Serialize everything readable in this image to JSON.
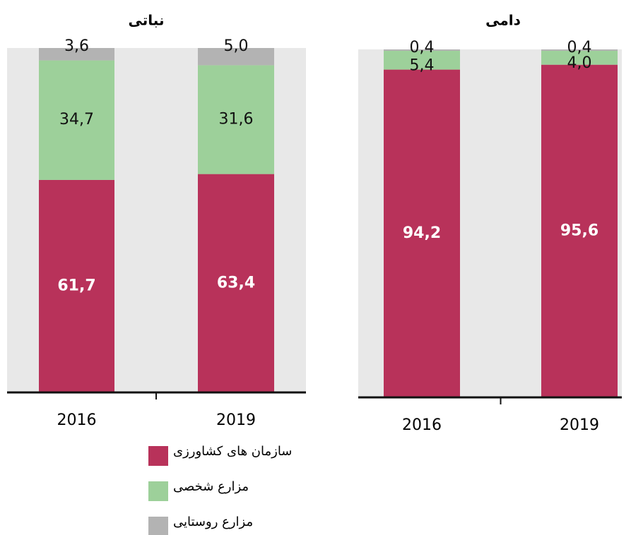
{
  "chart_data": [
    {
      "type": "stacked_bar",
      "title": "نباتی",
      "categories": [
        "2016",
        "2019"
      ],
      "ylim": [
        0,
        100
      ],
      "series": [
        {
          "name": "سازمان های کشاورزی",
          "color": "#b8325a",
          "values": [
            61.7,
            63.4
          ],
          "value_labels": [
            "61,7",
            "63,4"
          ]
        },
        {
          "name": "مزارع شخصی",
          "color": "#9dd09a",
          "values": [
            34.7,
            31.6
          ],
          "value_labels": [
            "34,7",
            "31,6"
          ]
        },
        {
          "name": "مزارع روستایی",
          "color": "#b3b3b3",
          "values": [
            3.6,
            5.0
          ],
          "value_labels": [
            "3,6",
            "5,0"
          ]
        }
      ]
    },
    {
      "type": "stacked_bar",
      "title": "دامی",
      "categories": [
        "2016",
        "2019"
      ],
      "ylim": [
        0,
        100
      ],
      "series": [
        {
          "color": "#b8325a",
          "values": [
            94.2,
            95.6
          ],
          "value_labels": [
            "94,2",
            "95,6"
          ]
        },
        {
          "color": "#9dd09a",
          "values": [
            5.4,
            4.0
          ],
          "value_labels": [
            "5,4",
            "4,0"
          ]
        },
        {
          "color": "#b3b3b3",
          "values": [
            0.4,
            0.4
          ],
          "value_labels": [
            "0,4",
            "0,4"
          ]
        }
      ]
    }
  ]
}
